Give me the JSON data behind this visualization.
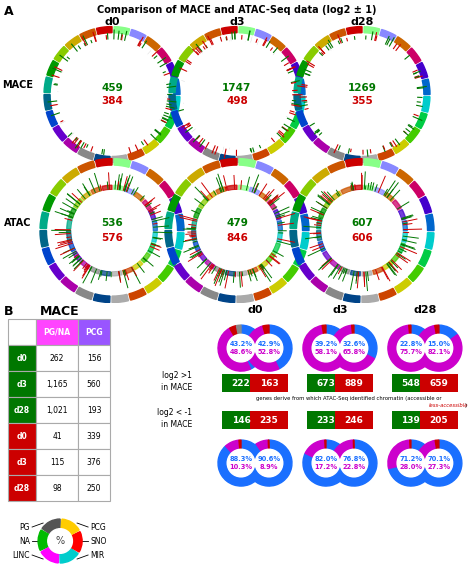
{
  "title": "Comparison of MACE and ATAC-Seq data (log2 ± 1)",
  "section_A_label": "A",
  "section_B_label": "B",
  "col_labels": [
    "d0",
    "d3",
    "d28"
  ],
  "mace_row_label": "MACE",
  "atac_row_label": "ATAC",
  "mace_green": [
    "459",
    "1747",
    "1269"
  ],
  "mace_red": [
    "384",
    "498",
    "355"
  ],
  "atac_green": [
    "536",
    "479",
    "607"
  ],
  "atac_red": [
    "576",
    "846",
    "606"
  ],
  "table_title": "MACE",
  "table_col1": "PG/NA",
  "table_col2": "PCG",
  "table_rows": [
    {
      "label": "d0",
      "color": "#007700",
      "val1": "262",
      "val2": "156"
    },
    {
      "label": "d3",
      "color": "#007700",
      "val1": "1,165",
      "val2": "560"
    },
    {
      "label": "d28",
      "color": "#007700",
      "val1": "1,021",
      "val2": "193"
    },
    {
      "label": "d0",
      "color": "#cc0000",
      "val1": "41",
      "val2": "339"
    },
    {
      "label": "d3",
      "color": "#cc0000",
      "val1": "115",
      "val2": "376"
    },
    {
      "label": "d28",
      "color": "#cc0000",
      "val1": "98",
      "val2": "250"
    }
  ],
  "donut_cols": [
    "d0",
    "d3",
    "d28"
  ],
  "top_donuts": [
    {
      "L_blue": 43.2,
      "L_magenta": 48.6,
      "L_red": 5.0,
      "L_gray": 3.2,
      "R_blue": 42.9,
      "R_magenta": 52.8,
      "R_red": 4.3,
      "R_gray": 0,
      "pct1": "43.2%",
      "pct2": "48.6%",
      "pct3": "42.9%",
      "pct4": "52.8%"
    },
    {
      "L_blue": 39.2,
      "L_magenta": 58.1,
      "L_red": 2.7,
      "L_gray": 0,
      "R_blue": 32.6,
      "R_magenta": 65.8,
      "R_red": 1.6,
      "R_gray": 0,
      "pct1": "39.2%",
      "pct2": "58.1%",
      "pct3": "32.6%",
      "pct4": "65.8%"
    },
    {
      "L_blue": 22.8,
      "L_magenta": 75.7,
      "L_red": 1.5,
      "L_gray": 0,
      "R_blue": 15.0,
      "R_magenta": 82.1,
      "R_red": 2.9,
      "R_gray": 0,
      "pct1": "22.8%",
      "pct2": "75.7%",
      "pct3": "15.0%",
      "pct4": "82.1%"
    }
  ],
  "middle_green_vals": [
    "222",
    "673",
    "548"
  ],
  "middle_red_vals": [
    "163",
    "889",
    "659"
  ],
  "lower_green_vals": [
    "146",
    "233",
    "139"
  ],
  "lower_red_vals": [
    "235",
    "246",
    "205"
  ],
  "bottom_donuts": [
    {
      "L_blue": 88.3,
      "L_magenta": 10.3,
      "L_red": 1.4,
      "L_gray": 0,
      "R_blue": 90.6,
      "R_magenta": 8.9,
      "R_red": 0.5,
      "R_gray": 0,
      "pct1": "88.3%",
      "pct2": "10.3%",
      "pct3": "90.6%",
      "pct4": "8.9%"
    },
    {
      "L_blue": 82.0,
      "L_magenta": 17.2,
      "L_red": 0.8,
      "L_gray": 0,
      "R_blue": 76.8,
      "R_magenta": 22.8,
      "R_red": 0.4,
      "R_gray": 0,
      "pct1": "82.0%",
      "pct2": "17.2%",
      "pct3": "76.8%",
      "pct4": "22.8%"
    },
    {
      "L_blue": 71.2,
      "L_magenta": 28.0,
      "L_red": 0.8,
      "L_gray": 0,
      "R_blue": 70.1,
      "R_magenta": 27.3,
      "R_red": 2.6,
      "R_gray": 0,
      "pct1": "71.2%",
      "pct2": "28.0%",
      "pct3": "70.1%",
      "pct4": "27.3%"
    }
  ],
  "color_green": "#007700",
  "color_red": "#cc0000",
  "color_blue": "#1a6fff",
  "color_magenta": "#cc00cc",
  "col1_header_color": "#ff44ff",
  "col2_header_color": "#9955ff",
  "ring_colors": [
    "#cc0000",
    "#cc5500",
    "#ccaa00",
    "#88cc00",
    "#009900",
    "#00aa88",
    "#006688",
    "#0044cc",
    "#6600cc",
    "#aa00aa",
    "#888888",
    "#004488",
    "#aaaaaa",
    "#cc4400",
    "#cccc00",
    "#44cc00",
    "#00cc44",
    "#00cccc",
    "#0066cc",
    "#4400cc",
    "#cc0066",
    "#cc6600",
    "#8888ff",
    "#88ff88"
  ]
}
